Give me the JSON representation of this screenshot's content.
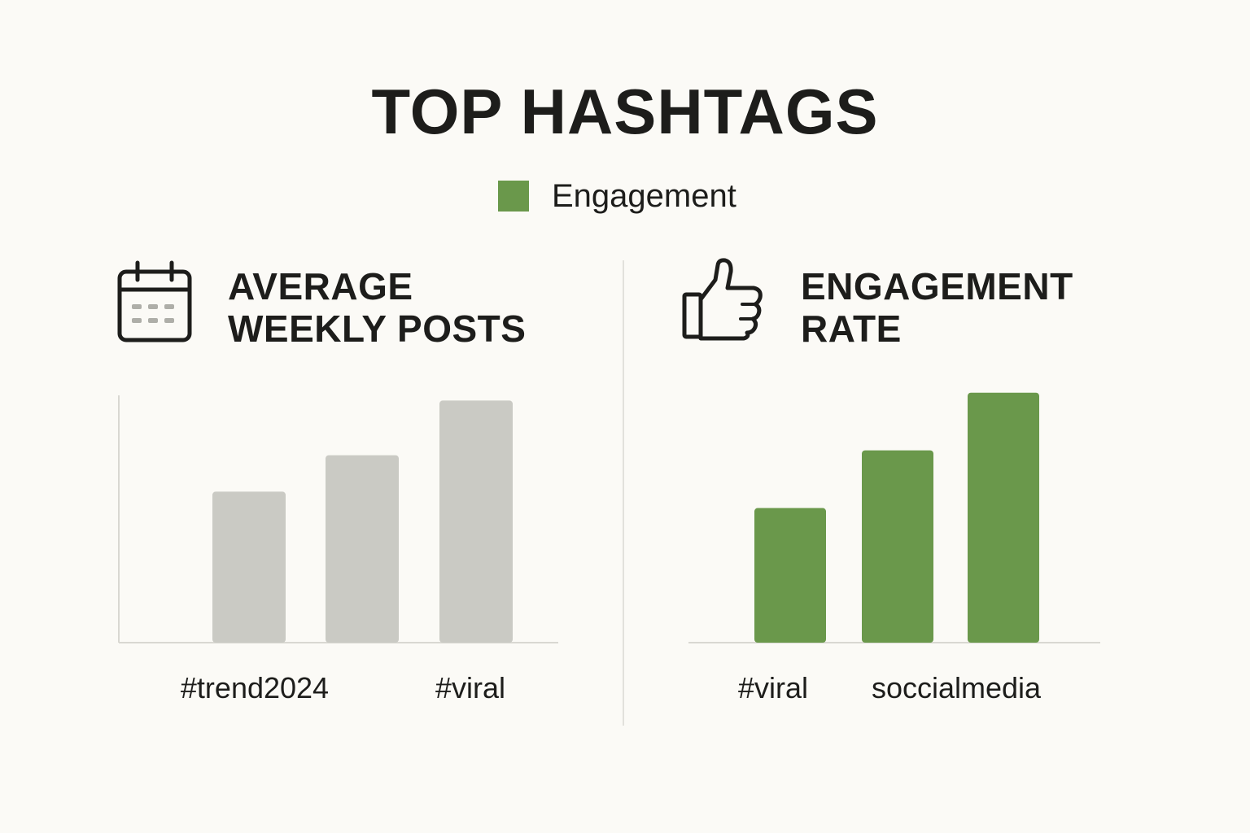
{
  "title": "TOP HASHTAGS",
  "legend": {
    "label": "Engagement",
    "color": "#6a984b"
  },
  "colors": {
    "posts_bar": "#cacac4",
    "engagement_bar": "#6a984b",
    "axis": "#d9d8d2"
  },
  "panels": {
    "left": {
      "icon": "calendar-icon",
      "title_line1": "AVERAGE",
      "title_line2": "WEEKLY POSTS"
    },
    "right": {
      "icon": "thumbs-up-icon",
      "title_line1": "ENGAGEMENT",
      "title_line2": "RATE"
    }
  },
  "chart_data": [
    {
      "type": "bar",
      "title": "AVERAGE WEEKLY POSTS",
      "categories": [
        "",
        "#trend2024",
        "",
        "#viral"
      ],
      "values": [
        0,
        58,
        72,
        93
      ],
      "ylim": [
        0,
        100
      ],
      "xlabel": "",
      "ylabel": "",
      "grid": false
    },
    {
      "type": "bar",
      "title": "ENGAGEMENT RATE",
      "categories": [
        "#viral",
        "soccialmedia",
        ""
      ],
      "values": [
        56,
        80,
        104
      ],
      "ylim": [
        0,
        110
      ],
      "xlabel": "",
      "ylabel": "",
      "grid": false,
      "series": [
        {
          "name": "Engagement",
          "values": [
            56,
            80,
            104
          ]
        }
      ]
    }
  ]
}
